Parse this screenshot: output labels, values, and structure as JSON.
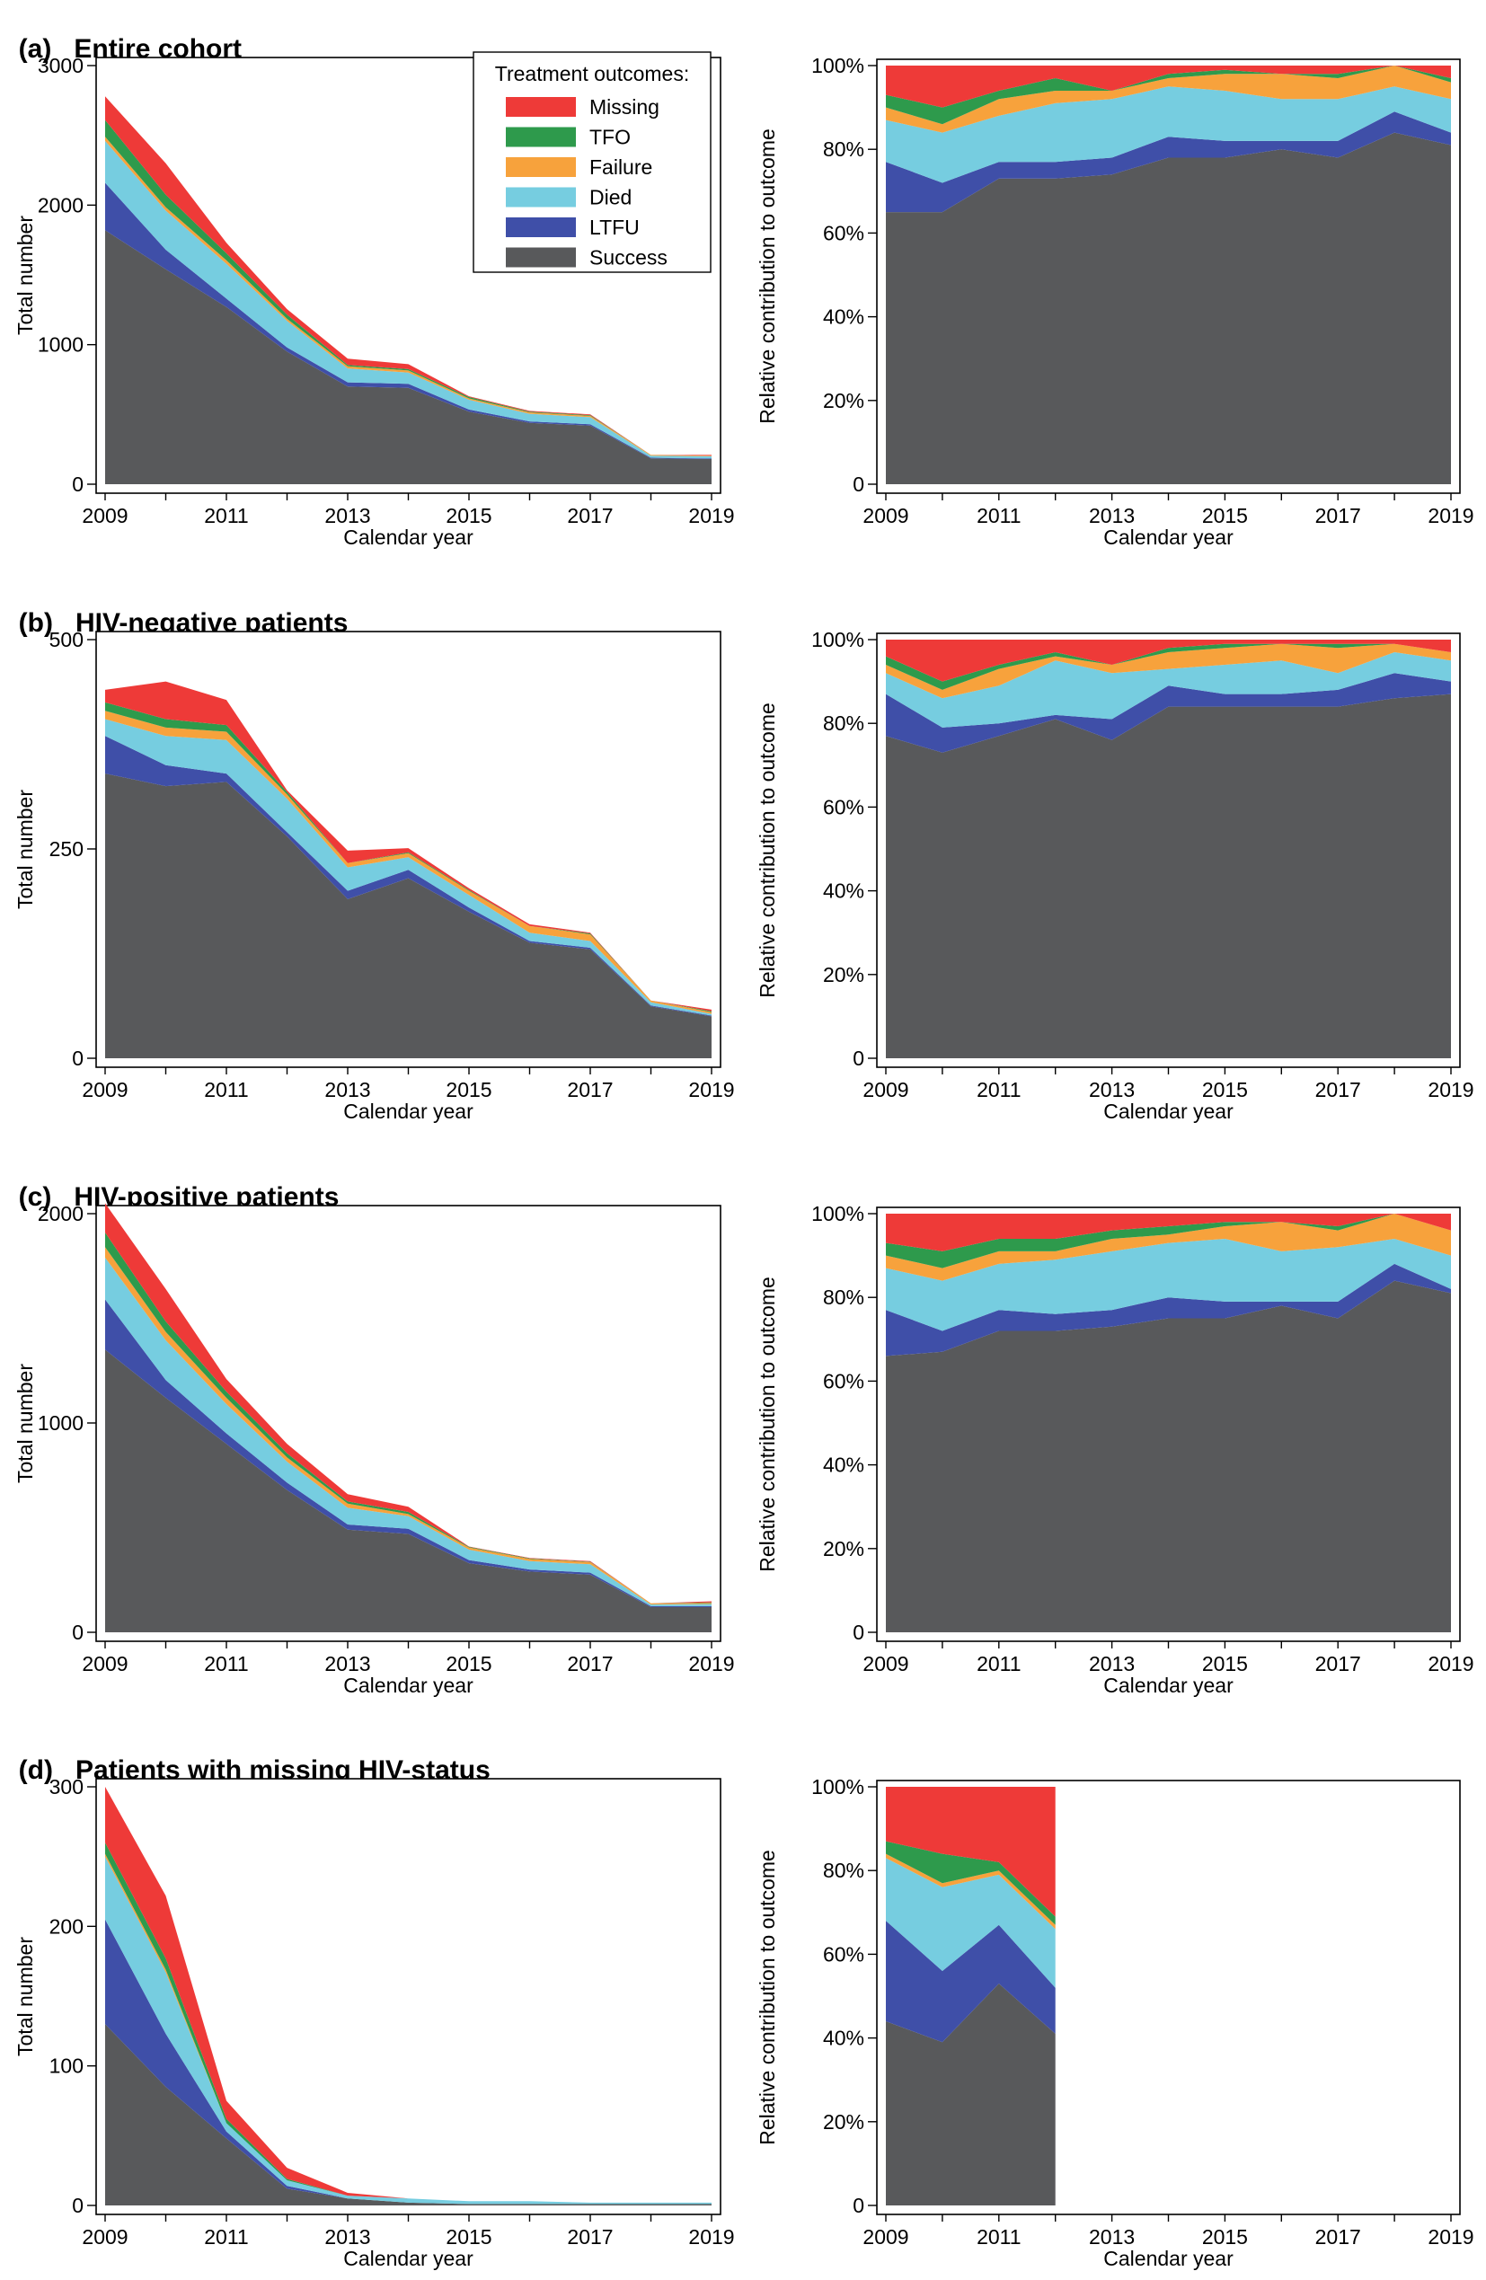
{
  "panels": [
    {
      "letter": "(a)",
      "title": "Entire cohort"
    },
    {
      "letter": "(b)",
      "title": "HIV-negative patients"
    },
    {
      "letter": "(c)",
      "title": "HIV-positive patients"
    },
    {
      "letter": "(d)",
      "title": "Patients with missing HIV-status"
    }
  ],
  "legend": {
    "title": "Treatment outcomes:",
    "items": [
      "Missing",
      "TFO",
      "Failure",
      "Died",
      "LTFU",
      "Success"
    ]
  },
  "colors": {
    "Success": "#58595b",
    "LTFU": "#3f4fa8",
    "Died": "#76cde0",
    "Failure": "#f7a23c",
    "TFO": "#2e9a4c",
    "Missing": "#ee3a38"
  },
  "axis_labels": {
    "x": "Calendar year",
    "y_left": "Total number",
    "y_right": "Relative contribution to outcome"
  },
  "chart_data": [
    {
      "id": "a-left",
      "type": "area",
      "stacked": true,
      "x": [
        2009,
        2010,
        2011,
        2012,
        2013,
        2014,
        2015,
        2016,
        2017,
        2018,
        2019
      ],
      "xticks": [
        "2009",
        "2011",
        "2013",
        "2015",
        "2017",
        "2019"
      ],
      "ylim": [
        0,
        3000
      ],
      "yticks": [
        "0",
        "1000",
        "2000",
        "3000"
      ],
      "xlabel": "Calendar year",
      "ylabel": "Total number",
      "series": [
        {
          "name": "Success",
          "values": [
            1820,
            1540,
            1270,
            950,
            700,
            690,
            520,
            440,
            420,
            185,
            180
          ]
        },
        {
          "name": "LTFU",
          "values": [
            340,
            140,
            60,
            30,
            30,
            30,
            15,
            10,
            10,
            5,
            5
          ]
        },
        {
          "name": "Died",
          "values": [
            300,
            280,
            250,
            190,
            100,
            80,
            70,
            55,
            50,
            15,
            15
          ]
        },
        {
          "name": "Failure",
          "values": [
            30,
            25,
            25,
            15,
            15,
            15,
            10,
            10,
            10,
            5,
            5
          ]
        },
        {
          "name": "TFO",
          "values": [
            120,
            90,
            50,
            30,
            10,
            10,
            10,
            5,
            5,
            0,
            0
          ]
        },
        {
          "name": "Missing",
          "values": [
            170,
            225,
            75,
            40,
            45,
            35,
            5,
            5,
            5,
            0,
            5
          ]
        }
      ]
    },
    {
      "id": "a-right",
      "type": "area",
      "stacked": true,
      "percent": true,
      "x": [
        2009,
        2010,
        2011,
        2012,
        2013,
        2014,
        2015,
        2016,
        2017,
        2018,
        2019
      ],
      "xticks": [
        "2009",
        "2011",
        "2013",
        "2015",
        "2017",
        "2019"
      ],
      "ylim": [
        0,
        100
      ],
      "yticks": [
        "0",
        "20%",
        "40%",
        "60%",
        "80%",
        "100%"
      ],
      "xlabel": "Calendar year",
      "ylabel": "Relative contribution to outcome",
      "series": [
        {
          "name": "Success",
          "values": [
            65,
            65,
            73,
            73,
            74,
            78,
            78,
            80,
            78,
            84,
            81
          ]
        },
        {
          "name": "LTFU",
          "values": [
            12,
            7,
            4,
            4,
            4,
            5,
            4,
            2,
            4,
            5,
            3
          ]
        },
        {
          "name": "Died",
          "values": [
            10,
            12,
            11,
            14,
            14,
            12,
            12,
            10,
            10,
            6,
            8
          ]
        },
        {
          "name": "Failure",
          "values": [
            3,
            2,
            4,
            3,
            2,
            2,
            4,
            6,
            5,
            5,
            4
          ]
        },
        {
          "name": "TFO",
          "values": [
            3,
            4,
            2,
            3,
            0,
            1,
            1,
            0,
            1,
            0,
            1
          ]
        },
        {
          "name": "Missing",
          "values": [
            7,
            10,
            6,
            3,
            6,
            2,
            1,
            2,
            2,
            0,
            3
          ]
        }
      ]
    },
    {
      "id": "b-left",
      "type": "area",
      "stacked": true,
      "x": [
        2009,
        2010,
        2011,
        2012,
        2013,
        2014,
        2015,
        2016,
        2017,
        2018,
        2019
      ],
      "xticks": [
        "2009",
        "2011",
        "2013",
        "2015",
        "2017",
        "2019"
      ],
      "ylim": [
        0,
        500
      ],
      "yticks": [
        "0",
        "250",
        "500"
      ],
      "xlabel": "Calendar year",
      "ylabel": "Total number",
      "series": [
        {
          "name": "Success",
          "values": [
            340,
            325,
            330,
            265,
            190,
            215,
            175,
            138,
            130,
            62,
            50
          ]
        },
        {
          "name": "LTFU",
          "values": [
            45,
            25,
            10,
            5,
            10,
            10,
            5,
            2,
            2,
            1,
            1
          ]
        },
        {
          "name": "Died",
          "values": [
            20,
            35,
            40,
            40,
            28,
            15,
            15,
            10,
            8,
            4,
            2
          ]
        },
        {
          "name": "Failure",
          "values": [
            10,
            10,
            10,
            5,
            5,
            5,
            5,
            8,
            8,
            2,
            2
          ]
        },
        {
          "name": "TFO",
          "values": [
            10,
            10,
            8,
            3,
            0,
            1,
            1,
            0,
            1,
            0,
            1
          ]
        },
        {
          "name": "Missing",
          "values": [
            15,
            45,
            30,
            2,
            15,
            5,
            2,
            2,
            1,
            0,
            2
          ]
        }
      ]
    },
    {
      "id": "b-right",
      "type": "area",
      "stacked": true,
      "percent": true,
      "x": [
        2009,
        2010,
        2011,
        2012,
        2013,
        2014,
        2015,
        2016,
        2017,
        2018,
        2019
      ],
      "xticks": [
        "2009",
        "2011",
        "2013",
        "2015",
        "2017",
        "2019"
      ],
      "ylim": [
        0,
        100
      ],
      "yticks": [
        "0",
        "20%",
        "40%",
        "60%",
        "80%",
        "100%"
      ],
      "xlabel": "Calendar year",
      "ylabel": "Relative contribution to outcome",
      "series": [
        {
          "name": "Success",
          "values": [
            77,
            73,
            77,
            81,
            76,
            84,
            84,
            84,
            84,
            86,
            87
          ]
        },
        {
          "name": "LTFU",
          "values": [
            10,
            6,
            3,
            1,
            5,
            5,
            3,
            3,
            4,
            6,
            3
          ]
        },
        {
          "name": "Died",
          "values": [
            5,
            7,
            9,
            13,
            11,
            4,
            7,
            8,
            4,
            5,
            5
          ]
        },
        {
          "name": "Failure",
          "values": [
            2,
            2,
            4,
            1,
            2,
            4,
            4,
            4,
            6,
            2,
            2
          ]
        },
        {
          "name": "TFO",
          "values": [
            2,
            2,
            1,
            1,
            0,
            1,
            1,
            0,
            1,
            0,
            0
          ]
        },
        {
          "name": "Missing",
          "values": [
            4,
            10,
            6,
            3,
            6,
            2,
            1,
            1,
            1,
            1,
            3
          ]
        }
      ]
    },
    {
      "id": "c-left",
      "type": "area",
      "stacked": true,
      "x": [
        2009,
        2010,
        2011,
        2012,
        2013,
        2014,
        2015,
        2016,
        2017,
        2018,
        2019
      ],
      "xticks": [
        "2009",
        "2011",
        "2013",
        "2015",
        "2017",
        "2019"
      ],
      "ylim": [
        0,
        2000
      ],
      "yticks": [
        "0",
        "1000",
        "2000"
      ],
      "xlabel": "Calendar year",
      "ylabel": "Total number",
      "series": [
        {
          "name": "Success",
          "values": [
            1350,
            1120,
            900,
            680,
            490,
            470,
            330,
            290,
            275,
            120,
            120
          ]
        },
        {
          "name": "LTFU",
          "values": [
            240,
            85,
            50,
            35,
            25,
            25,
            15,
            10,
            10,
            5,
            5
          ]
        },
        {
          "name": "Died",
          "values": [
            200,
            190,
            140,
            100,
            80,
            60,
            50,
            40,
            40,
            8,
            10
          ]
        },
        {
          "name": "Failure",
          "values": [
            50,
            40,
            30,
            20,
            20,
            10,
            10,
            10,
            10,
            5,
            5
          ]
        },
        {
          "name": "TFO",
          "values": [
            70,
            50,
            30,
            20,
            10,
            10,
            3,
            3,
            2,
            0,
            3
          ]
        },
        {
          "name": "Missing",
          "values": [
            140,
            155,
            60,
            45,
            35,
            25,
            2,
            2,
            3,
            0,
            5
          ]
        }
      ]
    },
    {
      "id": "c-right",
      "type": "area",
      "stacked": true,
      "percent": true,
      "x": [
        2009,
        2010,
        2011,
        2012,
        2013,
        2014,
        2015,
        2016,
        2017,
        2018,
        2019
      ],
      "xticks": [
        "2009",
        "2011",
        "2013",
        "2015",
        "2017",
        "2019"
      ],
      "ylim": [
        0,
        100
      ],
      "yticks": [
        "0",
        "20%",
        "40%",
        "60%",
        "80%",
        "100%"
      ],
      "xlabel": "Calendar year",
      "ylabel": "Relative contribution to outcome",
      "series": [
        {
          "name": "Success",
          "values": [
            66,
            67,
            72,
            72,
            73,
            75,
            75,
            78,
            75,
            84,
            81
          ]
        },
        {
          "name": "LTFU",
          "values": [
            11,
            5,
            5,
            4,
            4,
            5,
            4,
            1,
            4,
            4,
            1
          ]
        },
        {
          "name": "Died",
          "values": [
            10,
            12,
            11,
            13,
            14,
            13,
            15,
            12,
            13,
            6,
            8
          ]
        },
        {
          "name": "Failure",
          "values": [
            3,
            3,
            3,
            2,
            3,
            2,
            3,
            7,
            4,
            6,
            6
          ]
        },
        {
          "name": "TFO",
          "values": [
            3,
            4,
            3,
            3,
            2,
            2,
            1,
            0,
            1,
            0,
            0
          ]
        },
        {
          "name": "Missing",
          "values": [
            7,
            9,
            6,
            6,
            4,
            3,
            2,
            2,
            3,
            0,
            4
          ]
        }
      ]
    },
    {
      "id": "d-left",
      "type": "area",
      "stacked": true,
      "x": [
        2009,
        2010,
        2011,
        2012,
        2013,
        2014,
        2015,
        2016,
        2017,
        2018,
        2019
      ],
      "xticks": [
        "2009",
        "2011",
        "2013",
        "2015",
        "2017",
        "2019"
      ],
      "ylim": [
        0,
        300
      ],
      "yticks": [
        "0",
        "100",
        "200",
        "300"
      ],
      "xlabel": "Calendar year",
      "ylabel": "Total number",
      "series": [
        {
          "name": "Success",
          "values": [
            130,
            85,
            48,
            12,
            5,
            2,
            1,
            1,
            1,
            1,
            1
          ]
        },
        {
          "name": "LTFU",
          "values": [
            75,
            38,
            5,
            2,
            0,
            0,
            0,
            0,
            0,
            0,
            0
          ]
        },
        {
          "name": "Died",
          "values": [
            45,
            44,
            6,
            4,
            2,
            3,
            2,
            2,
            1,
            1,
            1
          ]
        },
        {
          "name": "Failure",
          "values": [
            2,
            2,
            0,
            0,
            0,
            0,
            0,
            0,
            0,
            0,
            0
          ]
        },
        {
          "name": "TFO",
          "values": [
            8,
            8,
            3,
            1,
            0,
            0,
            0,
            0,
            0,
            0,
            0
          ]
        },
        {
          "name": "Missing",
          "values": [
            40,
            45,
            13,
            8,
            2,
            0,
            0,
            0,
            0,
            0,
            0
          ]
        }
      ]
    },
    {
      "id": "d-right",
      "type": "area",
      "stacked": true,
      "percent": true,
      "x": [
        2009,
        2010,
        2011,
        2012
      ],
      "xlim": [
        2009,
        2019
      ],
      "xticks": [
        "2009",
        "2011",
        "2013",
        "2015",
        "2017",
        "2019"
      ],
      "ylim": [
        0,
        100
      ],
      "yticks": [
        "0",
        "20%",
        "40%",
        "60%",
        "80%",
        "100%"
      ],
      "xlabel": "Calendar year",
      "ylabel": "Relative contribution to outcome",
      "series": [
        {
          "name": "Success",
          "values": [
            44,
            39,
            53,
            41
          ]
        },
        {
          "name": "LTFU",
          "values": [
            24,
            17,
            14,
            11
          ]
        },
        {
          "name": "Died",
          "values": [
            15,
            20,
            12,
            14
          ]
        },
        {
          "name": "Failure",
          "values": [
            1,
            1,
            1,
            1
          ]
        },
        {
          "name": "TFO",
          "values": [
            3,
            7,
            2,
            2
          ]
        },
        {
          "name": "Missing",
          "values": [
            13,
            16,
            18,
            31
          ]
        }
      ]
    }
  ]
}
